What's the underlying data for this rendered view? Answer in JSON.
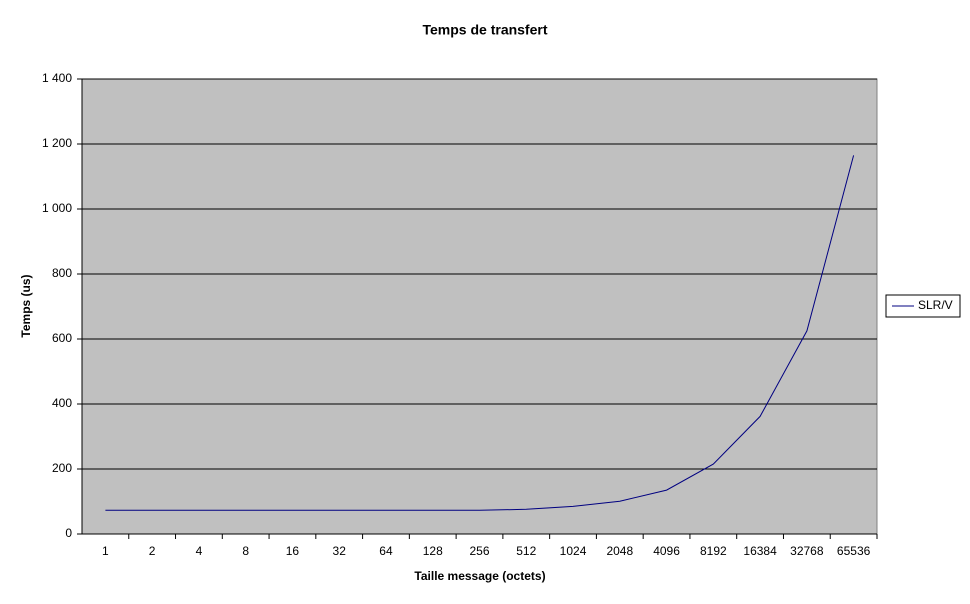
{
  "chart_data": {
    "type": "line",
    "title": "Temps de transfert",
    "x_label": "Taille message (octets)",
    "y_label": "Temps (us)",
    "categories": [
      "1",
      "2",
      "4",
      "8",
      "16",
      "32",
      "64",
      "128",
      "256",
      "512",
      "1024",
      "2048",
      "4096",
      "8192",
      "16384",
      "32768",
      "65536"
    ],
    "series": [
      {
        "name": "SLR/V",
        "color": "#000080",
        "values": [
          73,
          73,
          73,
          73,
          73,
          73,
          73,
          73,
          73,
          76,
          85,
          101,
          135,
          215,
          362,
          625,
          1165
        ]
      }
    ],
    "ylim": [
      0,
      1400
    ],
    "yticks": [
      0,
      200,
      400,
      600,
      800,
      {
        "value": 1000,
        "label": "1 000"
      },
      {
        "value": 1200,
        "label": "1 200"
      },
      {
        "value": 1400,
        "label": "1 400"
      }
    ],
    "grid": true,
    "legend": "right"
  }
}
